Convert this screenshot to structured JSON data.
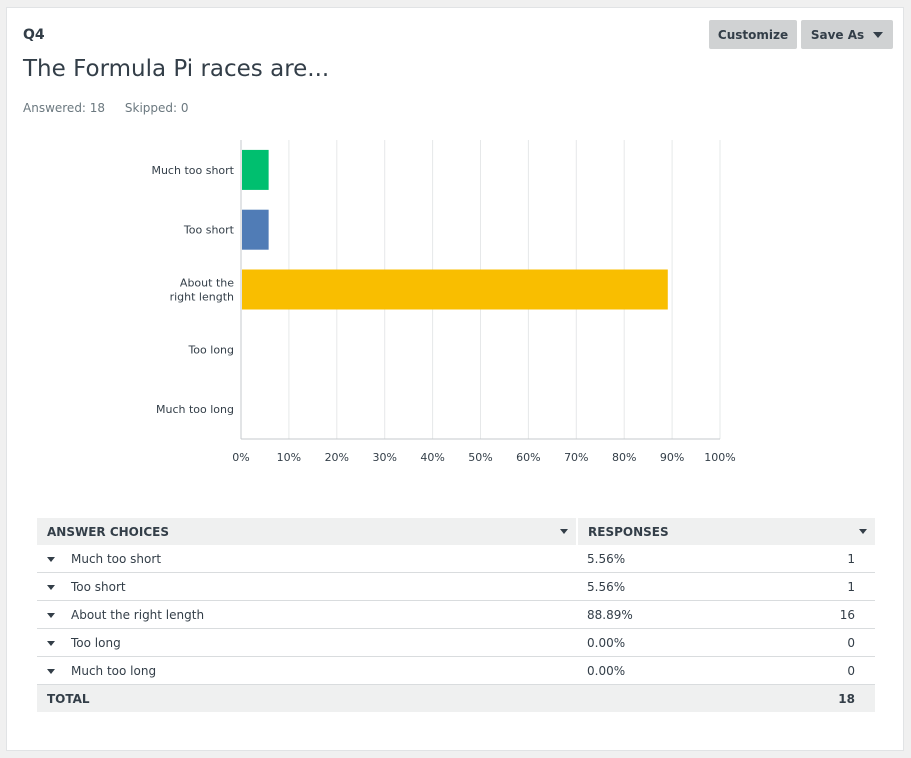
{
  "question": {
    "number": "Q4",
    "title": "The Formula Pi races are...",
    "answered_label": "Answered: 18",
    "skipped_label": "Skipped: 0"
  },
  "toolbar": {
    "customize_label": "Customize",
    "save_as_label": "Save As"
  },
  "chart_data": {
    "type": "bar",
    "orientation": "horizontal",
    "categories": [
      "Much too short",
      "Too short",
      "About the right length",
      "Too long",
      "Much too long"
    ],
    "category_lines": [
      [
        "Much too short"
      ],
      [
        "Too short"
      ],
      [
        "About the",
        "right length"
      ],
      [
        "Too long"
      ],
      [
        "Much too long"
      ]
    ],
    "values": [
      5.56,
      5.56,
      88.89,
      0.0,
      0.0
    ],
    "colors": [
      "#00bf6f",
      "#507cb6",
      "#f9be00",
      "#6bc8cd",
      "#ff8b4f"
    ],
    "xlim": [
      0,
      100
    ],
    "x_ticks": [
      "0%",
      "10%",
      "20%",
      "30%",
      "40%",
      "50%",
      "60%",
      "70%",
      "80%",
      "90%",
      "100%"
    ],
    "title": "",
    "xlabel": "",
    "ylabel": "",
    "grid": true
  },
  "table": {
    "headers": {
      "choices": "ANSWER CHOICES",
      "responses": "RESPONSES"
    },
    "rows": [
      {
        "choice": "Much too short",
        "percent": "5.56%",
        "count": "1"
      },
      {
        "choice": "Too short",
        "percent": "5.56%",
        "count": "1"
      },
      {
        "choice": "About the right length",
        "percent": "88.89%",
        "count": "16"
      },
      {
        "choice": "Too long",
        "percent": "0.00%",
        "count": "0"
      },
      {
        "choice": "Much too long",
        "percent": "0.00%",
        "count": "0"
      }
    ],
    "total_label": "TOTAL",
    "total_count": "18"
  }
}
